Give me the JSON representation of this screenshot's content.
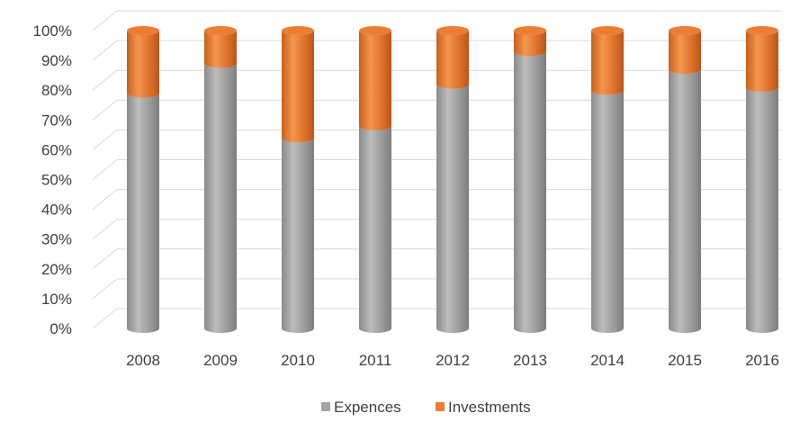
{
  "chart_data": {
    "type": "bar",
    "stacked": true,
    "percent": true,
    "categories": [
      "2008",
      "2009",
      "2010",
      "2011",
      "2012",
      "2013",
      "2014",
      "2015",
      "2016"
    ],
    "series": [
      {
        "name": "Expences",
        "color": "#a5a5a5",
        "values": [
          79,
          89,
          64,
          68,
          82,
          93,
          80,
          87,
          81
        ]
      },
      {
        "name": "Investments",
        "color": "#ed7d31",
        "values": [
          21,
          11,
          36,
          32,
          18,
          7,
          20,
          13,
          19
        ]
      }
    ],
    "yticks": [
      "0%",
      "10%",
      "20%",
      "30%",
      "40%",
      "50%",
      "60%",
      "70%",
      "80%",
      "90%",
      "100%"
    ],
    "ylim": [
      0,
      100
    ],
    "grid": true,
    "legend": "bottom",
    "title": "",
    "xlabel": "",
    "ylabel": ""
  }
}
